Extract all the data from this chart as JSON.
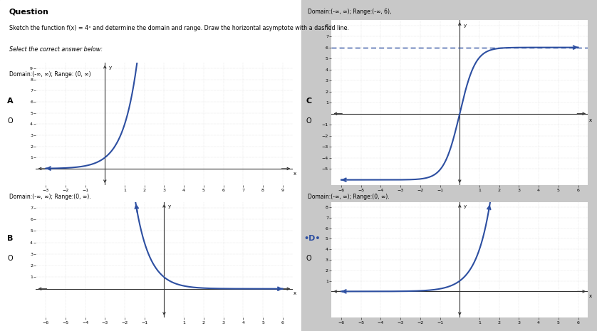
{
  "title": "Question",
  "subtitle": "Sketch the function f(x) = 4ˣ and determine the domain and range. Draw the horizontal asymptote with a dashed line.",
  "instruction": "Select the correct answer below:",
  "curve_color": "#2d4fa1",
  "grid_color": "#bbbbbb",
  "axis_color": "#333333",
  "dashed_color": "#2d4fa1",
  "left_bg": "#ffffff",
  "right_bg": "#c8c8c8",
  "outer_bg": "#b0b0b0",
  "panels": [
    {
      "label": "A",
      "radio": "O",
      "selected": false,
      "domain_text": "Domain:(-∞, ∞); Range: (0, ∞)",
      "graph_type": "A",
      "xlim": [
        -3.5,
        9.5
      ],
      "ylim": [
        -1.5,
        9.5
      ],
      "xticks": [
        -3,
        -2,
        -1,
        1,
        2,
        3,
        4,
        5,
        6,
        7,
        8,
        9
      ],
      "yticks": [
        1,
        2,
        3,
        4,
        5,
        6,
        7,
        8,
        9
      ],
      "asymptote_y": null
    },
    {
      "label": "B",
      "radio": "O",
      "selected": false,
      "domain_text": "Domain:(-∞, ∞); Range:(0, ∞).",
      "graph_type": "B",
      "xlim": [
        -6.5,
        6.5
      ],
      "ylim": [
        -2.5,
        7.5
      ],
      "xticks": [
        -6,
        -5,
        -4,
        -3,
        -2,
        -1,
        1,
        2,
        3,
        4,
        5,
        6
      ],
      "yticks": [
        1,
        2,
        3,
        4,
        5,
        6,
        7
      ],
      "asymptote_y": null
    },
    {
      "label": "C",
      "radio": "O",
      "selected": false,
      "domain_text": "Domain:(-∞, ∞); Range:(-∞, 6),",
      "graph_type": "C",
      "xlim": [
        -6.5,
        6.5
      ],
      "ylim": [
        -6.5,
        8.5
      ],
      "xticks": [
        -6,
        -5,
        -4,
        -3,
        -2,
        -1,
        1,
        2,
        3,
        4,
        5,
        6
      ],
      "yticks": [
        -5,
        -4,
        -3,
        -2,
        -1,
        1,
        2,
        3,
        4,
        5,
        6,
        7,
        8
      ],
      "asymptote_y": 6
    },
    {
      "label": "D",
      "radio": "O",
      "selected": true,
      "domain_text": "Domain:(-∞, ∞); Range:(0, ∞).",
      "graph_type": "D",
      "xlim": [
        -6.5,
        6.5
      ],
      "ylim": [
        -2.5,
        8.5
      ],
      "xticks": [
        -6,
        -5,
        -4,
        -3,
        -2,
        -1,
        1,
        2,
        3,
        4,
        5,
        6
      ],
      "yticks": [
        1,
        2,
        3,
        4,
        5,
        6,
        7,
        8
      ],
      "asymptote_y": null
    }
  ]
}
